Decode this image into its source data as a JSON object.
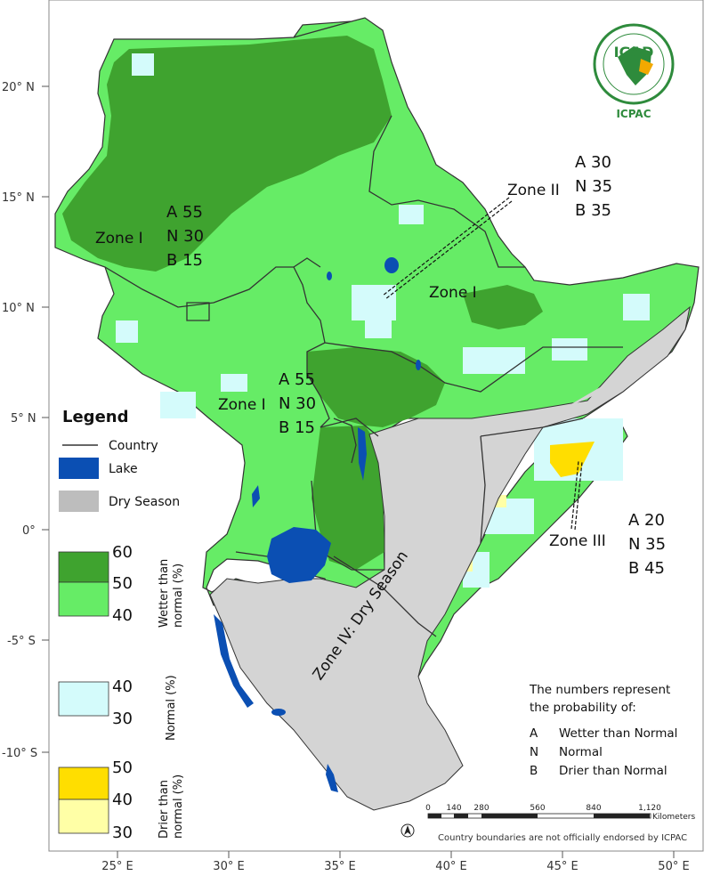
{
  "map": {
    "axis": {
      "lat_labels": [
        "20° N",
        "15° N",
        "10° N",
        "5° N",
        "0°",
        "-5° S",
        "-10° S"
      ],
      "lon_labels": [
        "25° E",
        "30° E",
        "35° E",
        "40° E",
        "45° E",
        "50° E"
      ]
    },
    "zones": [
      {
        "label": "Zone I",
        "probs": [
          "A 55",
          "N 30",
          "B 15"
        ]
      },
      {
        "label": "Zone II",
        "probs": [
          "A 30",
          "N 35",
          "B 35"
        ]
      },
      {
        "label": "Zone I",
        "probs": []
      },
      {
        "label": "Zone I",
        "probs": [
          "A 55",
          "N 30",
          "B 15"
        ]
      },
      {
        "label": "Zone III",
        "probs": [
          "A 20",
          "N 35",
          "B 45"
        ]
      },
      {
        "label": "Zone IV: Dry Season",
        "probs": []
      }
    ],
    "colors": {
      "wetter_high": "#3fa32f",
      "wetter_low": "#66ec66",
      "normal": "#d4fbfb",
      "drier_high": "#ffde00",
      "drier_low": "#ffffa6",
      "lake": "#0b4fb3",
      "dry_season": "#d4d4d4",
      "country_line": "#333333"
    }
  },
  "legend": {
    "title": "Legend",
    "items": [
      "Country",
      "Lake",
      "Dry Season"
    ],
    "wetter": {
      "values": [
        "60",
        "50",
        "40"
      ],
      "label_line1": "Wetter than",
      "label_line2": "normal (%)"
    },
    "normal": {
      "values": [
        "40",
        "30"
      ],
      "label": "Normal (%)"
    },
    "drier": {
      "values": [
        "50",
        "40",
        "30"
      ],
      "label_line1": "Drier than",
      "label_line2": "normal (%)"
    }
  },
  "notes": {
    "line1": "The numbers represent",
    "line2": "the probability of:",
    "items": [
      {
        "letter": "A",
        "text": "Wetter than Normal"
      },
      {
        "letter": "N",
        "text": "Normal"
      },
      {
        "letter": "B",
        "text": "Drier than Normal"
      }
    ]
  },
  "scale_bar": {
    "ticks": [
      "0",
      "140",
      "280",
      "560",
      "840",
      "1,120"
    ],
    "unit": "Kilometers"
  },
  "disclaimer": "Country boundaries are not officially endorsed by ICPAC",
  "logo": {
    "top": "IGAD",
    "bottom": "ICPAC"
  }
}
